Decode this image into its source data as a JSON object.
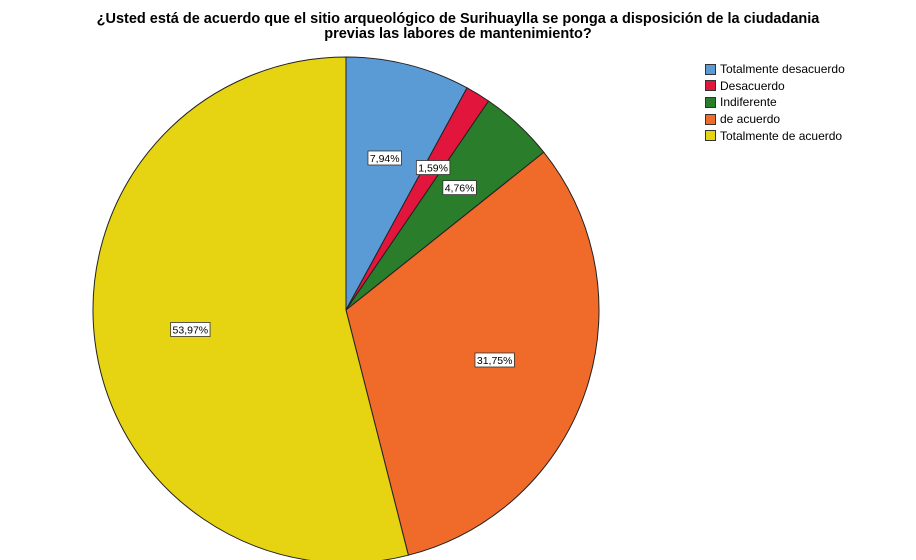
{
  "chart_data": {
    "type": "pie",
    "title": "¿Usted está de acuerdo que el sitio arqueológico de Surihuaylla se ponga a disposición de la ciudadania previas las labores de mantenimiento?",
    "title_lines": [
      "¿Usted está de acuerdo que el sitio arqueológico de Surihuaylla se ponga a disposición de la ciudadania",
      "previas las labores de mantenimiento?"
    ],
    "legend_position": "top-right",
    "slices": [
      {
        "label": "Totalmente desacuerdo",
        "value": 7.94,
        "display": "7,94%",
        "color": "#5b9bd5"
      },
      {
        "label": "Desacuerdo",
        "value": 1.59,
        "display": "1,59%",
        "color": "#e2163c"
      },
      {
        "label": "Indiferente",
        "value": 4.76,
        "display": "4,76%",
        "color": "#2a7d2a"
      },
      {
        "label": "de acuerdo",
        "value": 31.75,
        "display": "31,75%",
        "color": "#f06a2a"
      },
      {
        "label": "Totalmente de acuerdo",
        "value": 53.97,
        "display": "53,97%",
        "color": "#e6d312"
      }
    ]
  }
}
